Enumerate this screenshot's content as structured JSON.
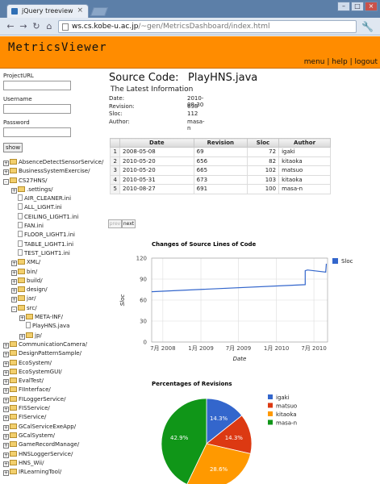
{
  "browser": {
    "tab_title": "jQuery treeview",
    "url_host": "ws.cs.kobe-u.ac.jp",
    "url_path": "/~gen/MetricsDashboard/index.html"
  },
  "app": {
    "title": "MetricsViewer",
    "nav": [
      "menu",
      "help",
      "logout"
    ]
  },
  "login": {
    "project_url_label": "ProjectURL",
    "username_label": "Username",
    "password_label": "Password",
    "show_button": "show"
  },
  "tree": [
    {
      "label": "AbsenceDetectSensorService/",
      "level": 0,
      "type": "folder",
      "expand": "+"
    },
    {
      "label": "BusinessSystemExercise/",
      "level": 0,
      "type": "folder",
      "expand": "+"
    },
    {
      "label": "CS27HNS/",
      "level": 0,
      "type": "folder",
      "expand": "-"
    },
    {
      "label": ".settings/",
      "level": 1,
      "type": "folder",
      "expand": "+"
    },
    {
      "label": "AIR_CLEANER.ini",
      "level": 1,
      "type": "file"
    },
    {
      "label": "ALL_LIGHT.ini",
      "level": 1,
      "type": "file"
    },
    {
      "label": "CEILING_LIGHT1.ini",
      "level": 1,
      "type": "file"
    },
    {
      "label": "FAN.ini",
      "level": 1,
      "type": "file"
    },
    {
      "label": "FLOOR_LIGHT1.ini",
      "level": 1,
      "type": "file"
    },
    {
      "label": "TABLE_LIGHT1.ini",
      "level": 1,
      "type": "file"
    },
    {
      "label": "TEST_LIGHT1.ini",
      "level": 1,
      "type": "file"
    },
    {
      "label": "XML/",
      "level": 1,
      "type": "folder",
      "expand": "+"
    },
    {
      "label": "bin/",
      "level": 1,
      "type": "folder",
      "expand": "+"
    },
    {
      "label": "build/",
      "level": 1,
      "type": "folder",
      "expand": "+"
    },
    {
      "label": "design/",
      "level": 1,
      "type": "folder",
      "expand": "+"
    },
    {
      "label": "jar/",
      "level": 1,
      "type": "folder",
      "expand": "+"
    },
    {
      "label": "src/",
      "level": 1,
      "type": "folder",
      "expand": "-"
    },
    {
      "label": "META-INF/",
      "level": 2,
      "type": "folder",
      "expand": "+"
    },
    {
      "label": "PlayHNS.java",
      "level": 2,
      "type": "file"
    },
    {
      "label": "jp/",
      "level": 2,
      "type": "folder",
      "expand": "+"
    },
    {
      "label": "CommunicationCamera/",
      "level": 0,
      "type": "folder",
      "expand": "+"
    },
    {
      "label": "DesignPatternSample/",
      "level": 0,
      "type": "folder",
      "expand": "+"
    },
    {
      "label": "EcoSystem/",
      "level": 0,
      "type": "folder",
      "expand": "+"
    },
    {
      "label": "EcoSystemGUI/",
      "level": 0,
      "type": "folder",
      "expand": "+"
    },
    {
      "label": "EvalTest/",
      "level": 0,
      "type": "folder",
      "expand": "+"
    },
    {
      "label": "FIInterface/",
      "level": 0,
      "type": "folder",
      "expand": "+"
    },
    {
      "label": "FILoggerService/",
      "level": 0,
      "type": "folder",
      "expand": "+"
    },
    {
      "label": "FISService/",
      "level": 0,
      "type": "folder",
      "expand": "+"
    },
    {
      "label": "FIService/",
      "level": 0,
      "type": "folder",
      "expand": "+"
    },
    {
      "label": "GCalServiceExeApp/",
      "level": 0,
      "type": "folder",
      "expand": "+"
    },
    {
      "label": "GCalSystem/",
      "level": 0,
      "type": "folder",
      "expand": "+"
    },
    {
      "label": "GameRecordManage/",
      "level": 0,
      "type": "folder",
      "expand": "+"
    },
    {
      "label": "HNSLoggerService/",
      "level": 0,
      "type": "folder",
      "expand": "+"
    },
    {
      "label": "HNS_Wii/",
      "level": 0,
      "type": "folder",
      "expand": "+"
    },
    {
      "label": "IRLearningTool/",
      "level": 0,
      "type": "folder",
      "expand": "+"
    }
  ],
  "source": {
    "heading": "Source Code:",
    "file": "PlayHNS.java",
    "latest_heading": "The Latest Information",
    "info": [
      {
        "key": "Date:",
        "value": "2010-08-30"
      },
      {
        "key": "Revision:",
        "value": "698"
      },
      {
        "key": "Sloc:",
        "value": "112"
      },
      {
        "key": "Author:",
        "value": "masa-n"
      }
    ]
  },
  "table": {
    "headers": [
      "Date",
      "Revision",
      "Sloc",
      "Author"
    ],
    "rows": [
      [
        "1",
        "2008-05-08",
        "69",
        "72",
        "igaki"
      ],
      [
        "2",
        "2010-05-20",
        "656",
        "82",
        "kitaoka"
      ],
      [
        "3",
        "2010-05-20",
        "665",
        "102",
        "matsuo"
      ],
      [
        "4",
        "2010-05-31",
        "673",
        "103",
        "kitaoka"
      ],
      [
        "5",
        "2010-08-27",
        "691",
        "100",
        "masa-n"
      ]
    ]
  },
  "pager": {
    "prev": "prev",
    "next": "next"
  },
  "chart_data": [
    {
      "type": "line",
      "title": "Changes of Source Lines of Code",
      "xlabel": "Date",
      "ylabel": "Sloc",
      "ylim": [
        0,
        120
      ],
      "yticks": [
        0,
        30,
        60,
        90,
        120
      ],
      "xticks": [
        "7月 2008",
        "1月 2009",
        "7月 2009",
        "1月 2010",
        "7月 2010"
      ],
      "xtick_dates": [
        "2008-07-01",
        "2009-01-01",
        "2009-07-01",
        "2010-01-01",
        "2010-07-01"
      ],
      "xlim": [
        "2008-05-08",
        "2010-09-05"
      ],
      "series": [
        {
          "name": "Sloc",
          "color": "#3366cc",
          "points": [
            {
              "x": "2008-05-08",
              "y": 72
            },
            {
              "x": "2010-05-20",
              "y": 82
            },
            {
              "x": "2010-05-20",
              "y": 102
            },
            {
              "x": "2010-05-31",
              "y": 103
            },
            {
              "x": "2010-08-27",
              "y": 100
            },
            {
              "x": "2010-08-30",
              "y": 112
            }
          ]
        }
      ],
      "legend": "right",
      "grid": true
    },
    {
      "type": "pie",
      "title": "Percentages of Revisions",
      "slices": [
        {
          "label": "igaki",
          "value": 14.3,
          "color": "#3366cc"
        },
        {
          "label": "matsuo",
          "value": 14.3,
          "color": "#dc3912"
        },
        {
          "label": "kitaoka",
          "value": 28.6,
          "color": "#ff9900"
        },
        {
          "label": "masa-n",
          "value": 42.9,
          "color": "#109618"
        }
      ],
      "legend": "right"
    }
  ]
}
